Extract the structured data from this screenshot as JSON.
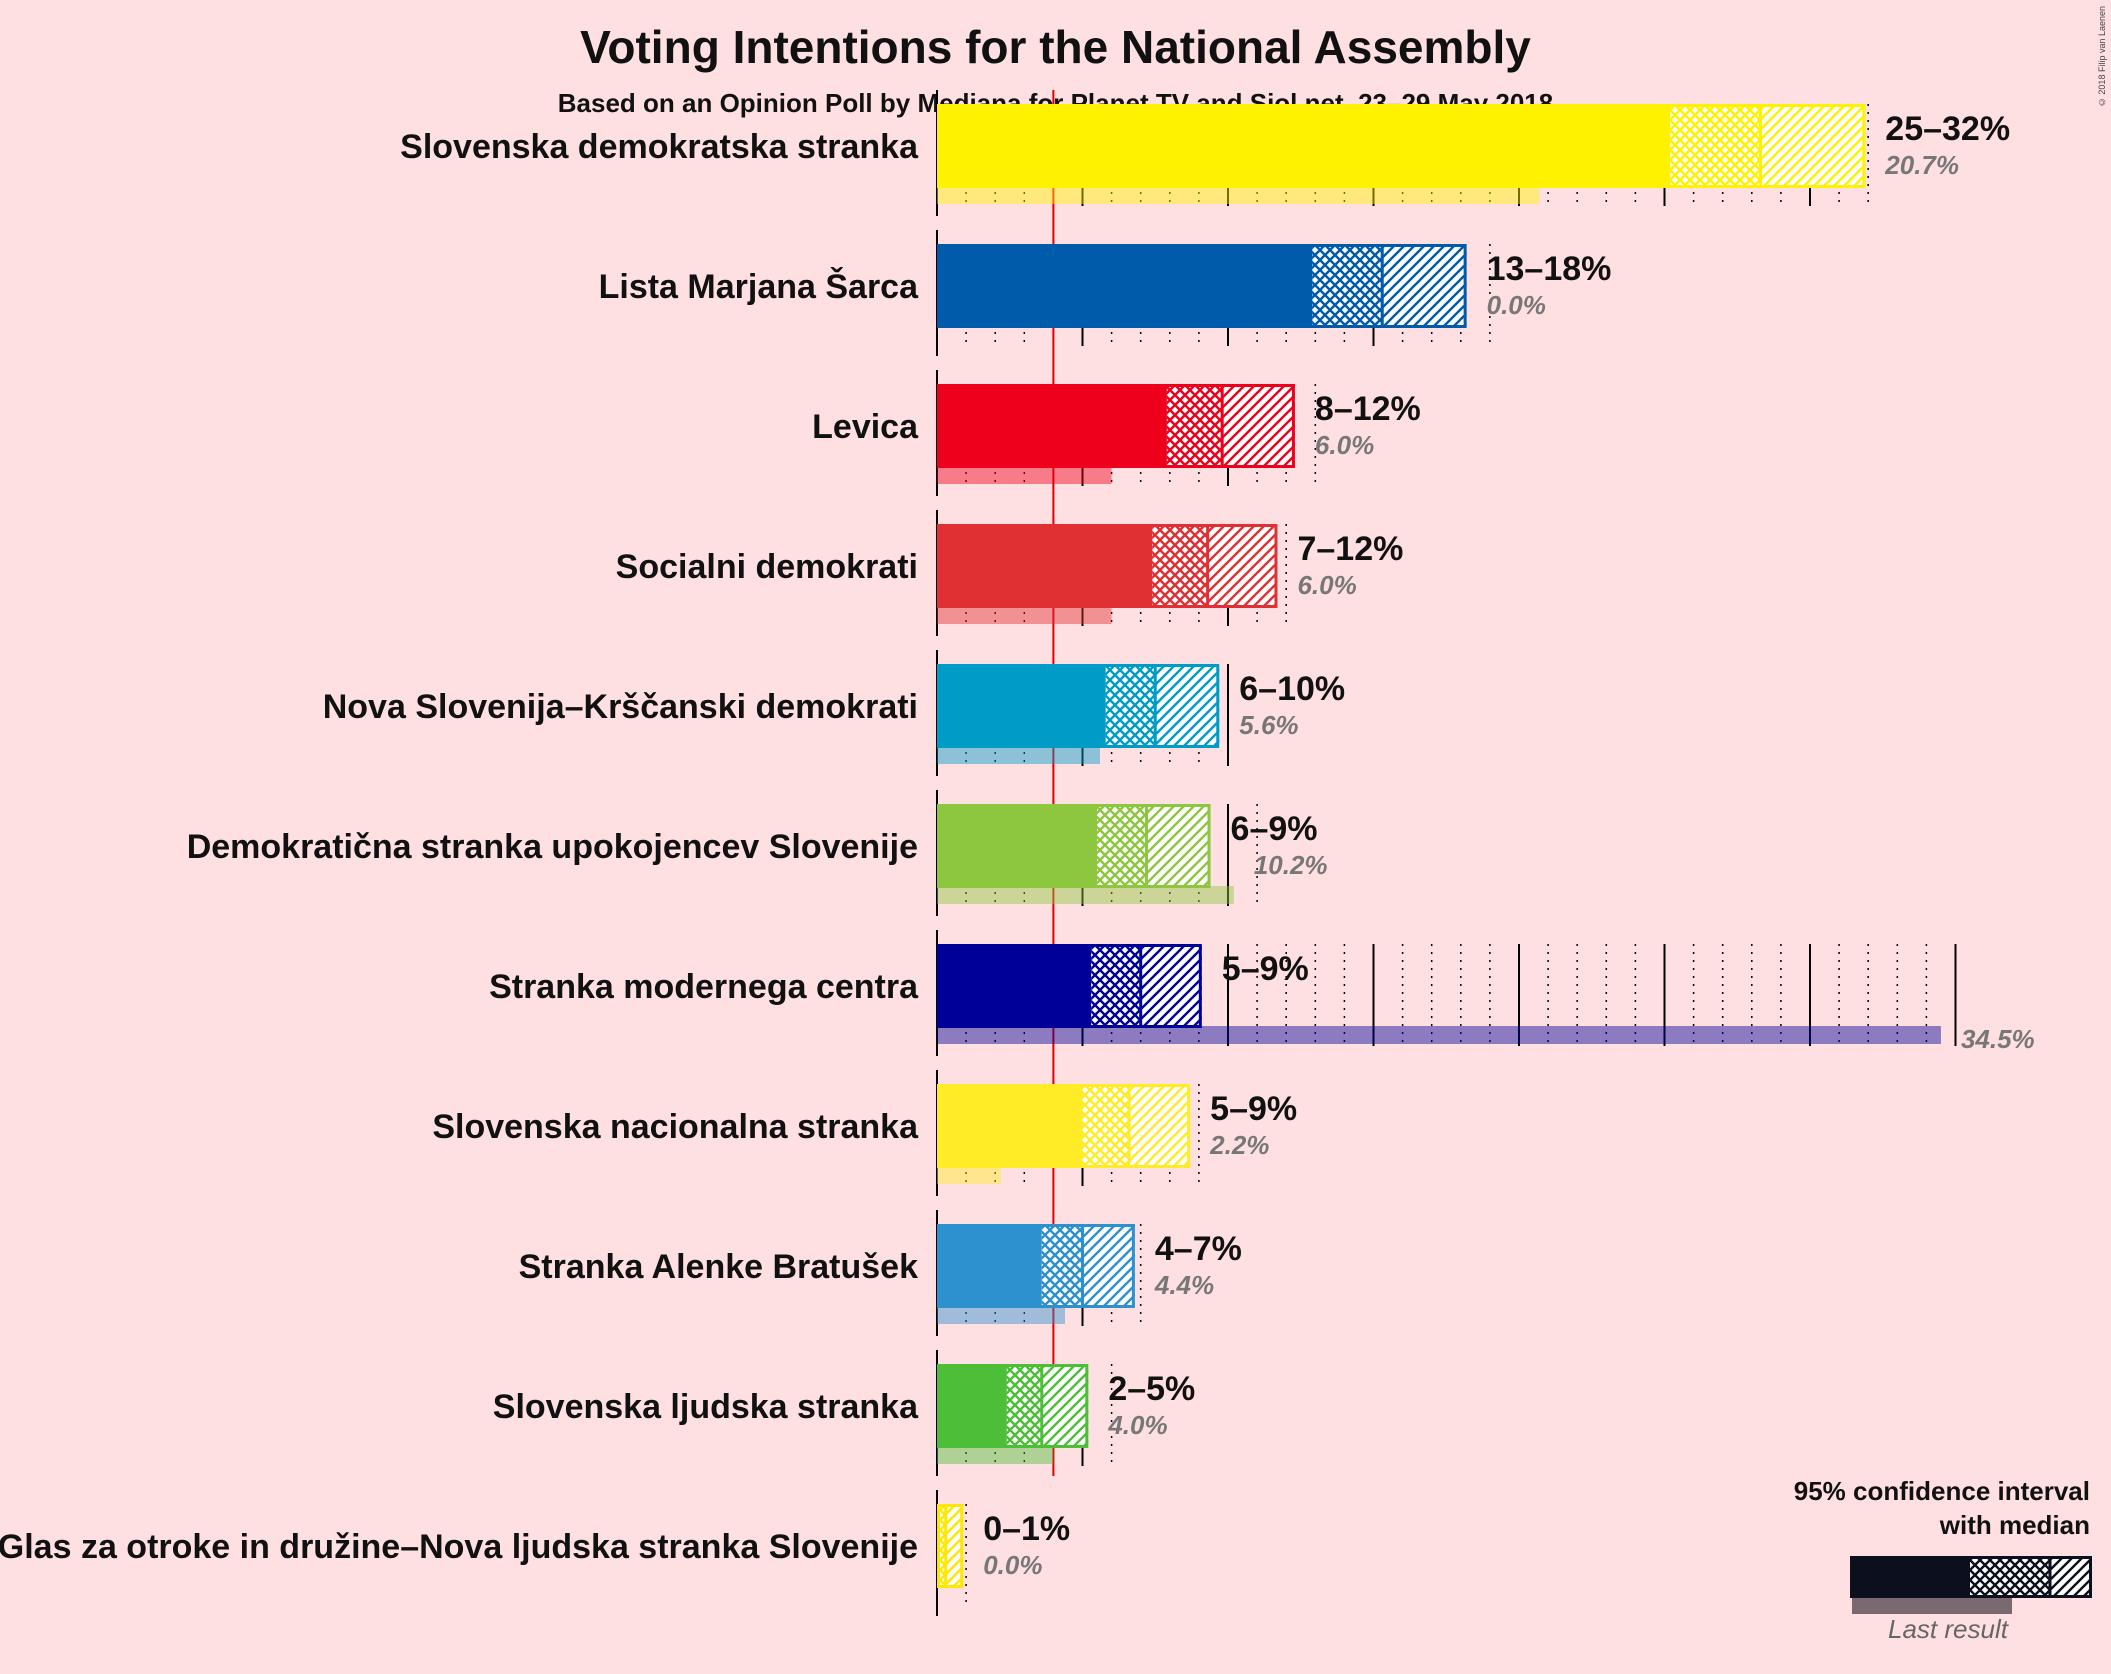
{
  "title": "Voting Intentions for the National Assembly",
  "subtitle": "Based on an Opinion Poll by Mediana for Planet TV and Siol.net, 23–29 May 2018",
  "copyright": "© 2018 Filip van Laenen",
  "legend": {
    "title_line1": "95% confidence interval",
    "title_line2": "with median",
    "last_result": "Last result"
  },
  "chart_data": {
    "type": "bar",
    "orientation": "horizontal",
    "x_unit": "%",
    "threshold": 4,
    "xlim": [
      0,
      36
    ],
    "grid": "dotted every 1%, solid every 5%",
    "parties": [
      {
        "name": "Slovenska demokratska stranka",
        "color": "#FFF200",
        "low": 25.2,
        "median": 28.3,
        "high": 31.9,
        "range_label": "25–32%",
        "last": 20.7,
        "last_label": "20.7%"
      },
      {
        "name": "Lista Marjana Šarca",
        "color": "#005BAA",
        "low": 12.9,
        "median": 15.3,
        "high": 18.2,
        "range_label": "13–18%",
        "last": 0.0,
        "last_label": "0.0%"
      },
      {
        "name": "Levica",
        "color": "#EE001C",
        "low": 7.9,
        "median": 9.8,
        "high": 12.3,
        "range_label": "8–12%",
        "last": 6.0,
        "last_label": "6.0%"
      },
      {
        "name": "Socialni demokrati",
        "color": "#E03034",
        "low": 7.4,
        "median": 9.3,
        "high": 11.7,
        "range_label": "7–12%",
        "last": 6.0,
        "last_label": "6.0%"
      },
      {
        "name": "Nova Slovenija–Krščanski demokrati",
        "color": "#009CC8",
        "low": 5.8,
        "median": 7.5,
        "high": 9.7,
        "range_label": "6–10%",
        "last": 5.6,
        "last_label": "5.6%"
      },
      {
        "name": "Demokratična stranka upokojencev Slovenije",
        "color": "#8DC63F",
        "low": 5.5,
        "median": 7.2,
        "high": 9.4,
        "range_label": "6–9%",
        "last": 10.2,
        "last_label": "10.2%"
      },
      {
        "name": "Stranka modernega centra",
        "color": "#000099",
        "low": 5.3,
        "median": 7.0,
        "high": 9.1,
        "range_label": "5–9%",
        "last": 34.5,
        "last_label": "34.5%"
      },
      {
        "name": "Slovenska nacionalna stranka",
        "color": "#FFEC26",
        "low": 5.0,
        "median": 6.6,
        "high": 8.7,
        "range_label": "5–9%",
        "last": 2.2,
        "last_label": "2.2%"
      },
      {
        "name": "Stranka Alenke Bratušek",
        "color": "#2D91CF",
        "low": 3.6,
        "median": 5.0,
        "high": 6.8,
        "range_label": "4–7%",
        "last": 4.4,
        "last_label": "4.4%"
      },
      {
        "name": "Slovenska ljudska stranka",
        "color": "#4DBE38",
        "low": 2.4,
        "median": 3.6,
        "high": 5.2,
        "range_label": "2–5%",
        "last": 4.0,
        "last_label": "4.0%"
      },
      {
        "name": "Glas za otroke in družine–Nova ljudska stranka Slovenije",
        "color": "#FFE800",
        "low": 0.1,
        "median": 0.3,
        "high": 0.9,
        "range_label": "0–1%",
        "last": 0.0,
        "last_label": "0.0%"
      }
    ]
  }
}
